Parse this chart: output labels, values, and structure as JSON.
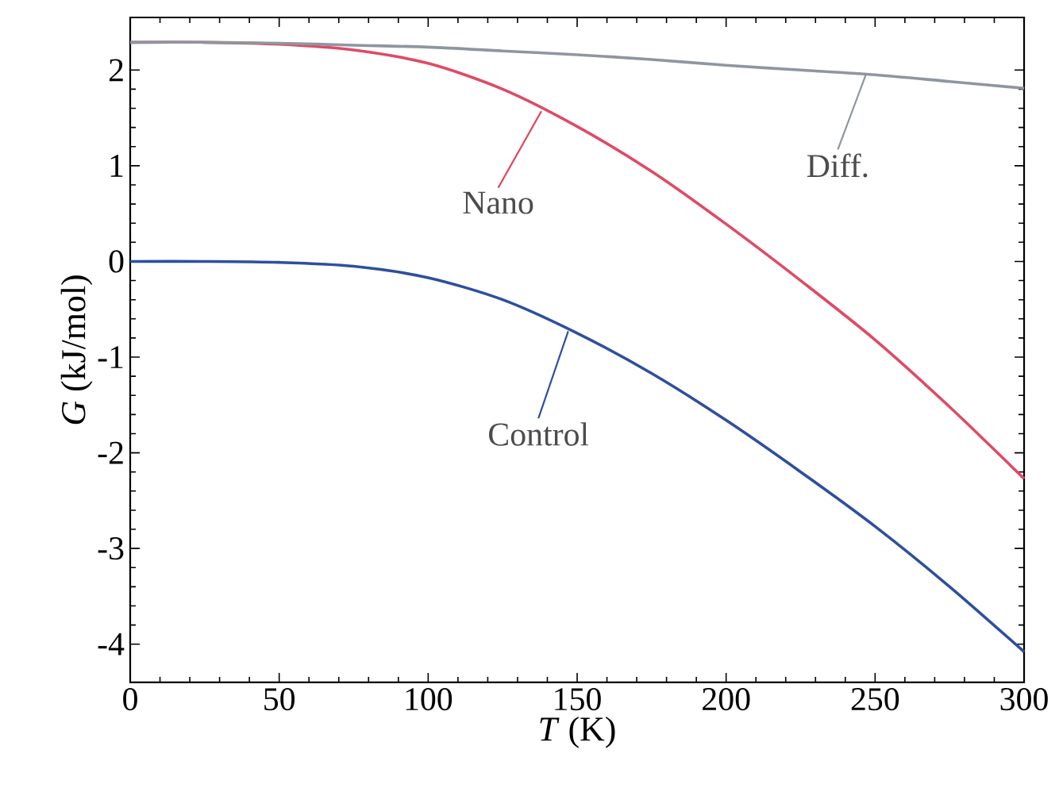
{
  "chart_data": {
    "type": "line",
    "xlabel": "*T* (K)",
    "ylabel": "*G* (kJ/mol)",
    "xlim": [
      0,
      300
    ],
    "xticks": [
      0,
      50,
      100,
      150,
      200,
      250,
      300
    ],
    "ylim": [
      -4.4,
      2.55
    ],
    "yticks": [
      -4,
      -3,
      -2,
      -1,
      0,
      1,
      2
    ],
    "grid": false,
    "marker": "none",
    "line_style": "solid",
    "x": [
      0,
      25,
      50,
      75,
      100,
      125,
      150,
      175,
      200,
      225,
      250,
      275,
      300
    ],
    "series": [
      {
        "color": "#2e4f9e",
        "values": [
          0,
          0,
          -0.01,
          -0.05,
          -0.17,
          -0.4,
          -0.75,
          -1.17,
          -1.66,
          -2.2,
          -2.77,
          -3.4,
          -4.08
        ]
      },
      {
        "color": "#e04a64",
        "values": [
          2.29,
          2.29,
          2.27,
          2.21,
          2.07,
          1.8,
          1.41,
          0.94,
          0.39,
          -0.2,
          -0.82,
          -1.52,
          -2.27
        ]
      },
      {
        "color": "#8e96a0",
        "values": [
          2.29,
          2.29,
          2.28,
          2.26,
          2.24,
          2.2,
          2.16,
          2.11,
          2.05,
          2.0,
          1.95,
          1.88,
          1.81
        ]
      }
    ],
    "annotations": [
      {
        "text": "Control",
        "x": 147,
        "y": -0.73
      },
      {
        "text": "Nano",
        "x": 138,
        "y": 1.57
      },
      {
        "text": "Diff.",
        "x": 247,
        "y": 1.96
      }
    ]
  }
}
